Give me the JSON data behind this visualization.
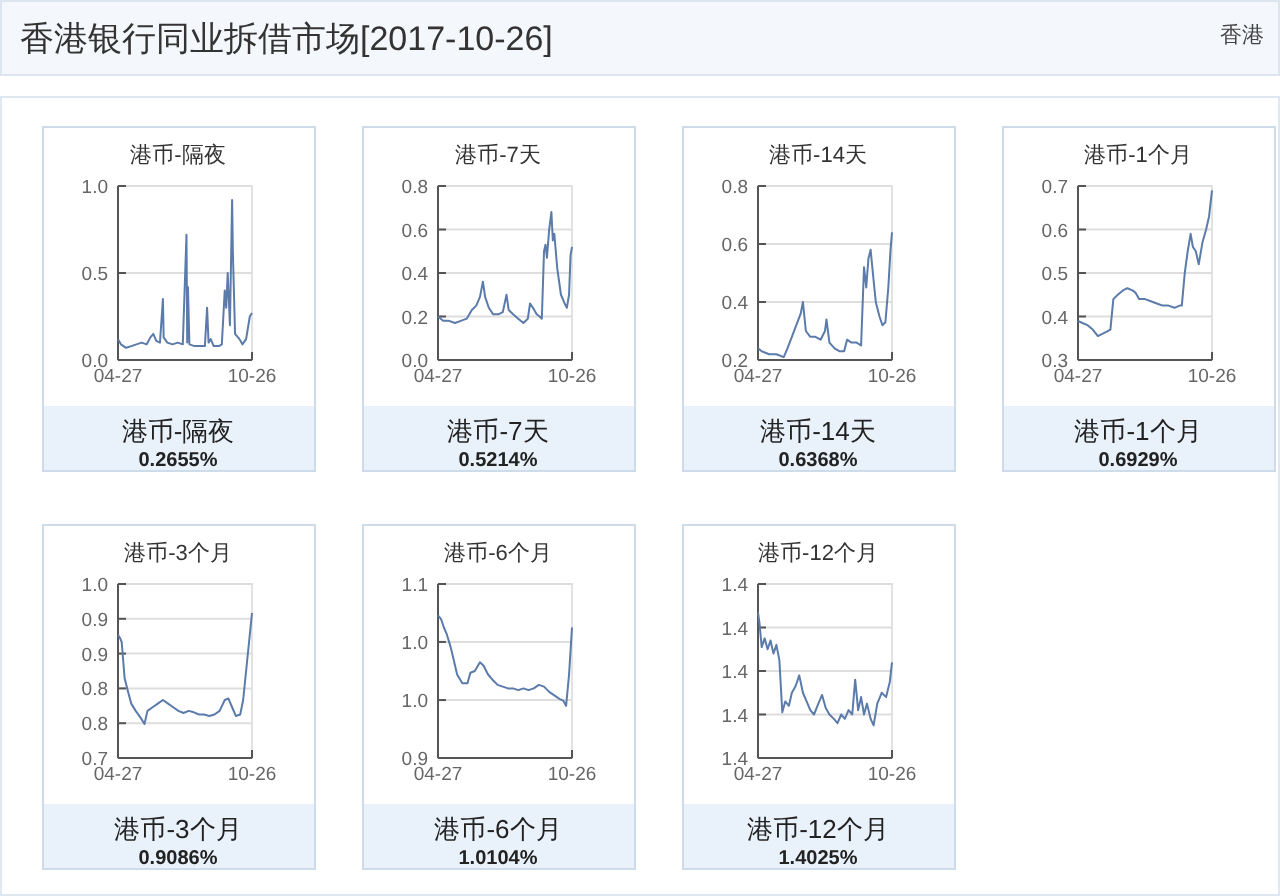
{
  "chart_data": [
    {
      "type": "other",
      "title": "香港银行同业拆借市场[2017-10-26]",
      "annotations": [
        "香港"
      ]
    },
    {
      "type": "line",
      "title": "港币-隔夜",
      "color": "#5b7bab",
      "grid": "y",
      "xlim": [
        "--04-27",
        "--10-26"
      ],
      "xticks": [
        {
          "value": "--04-27",
          "label": "04-27"
        },
        {
          "value": "--10-26",
          "label": "10-26"
        }
      ],
      "ylim": [
        0,
        1
      ],
      "yticks": [
        {
          "value": 0,
          "label": "0.0"
        },
        {
          "value": 0.5,
          "label": "0.5"
        },
        {
          "value": 1,
          "label": "1.0"
        }
      ],
      "annotations": [
        "港币-隔夜",
        "0.2655%"
      ],
      "x": [
        "--04-27",
        "--05-01",
        "--05-08",
        "--05-15",
        "--05-22",
        "--05-29",
        "--06-05",
        "--06-10",
        "--06-14",
        "--06-18",
        "--06-23",
        "--06-27",
        "--06-28",
        "--07-03",
        "--07-10",
        "--07-17",
        "--07-24",
        "--07-29",
        "--07-30",
        "--07-31",
        "--08-02",
        "--08-09",
        "--08-16",
        "--08-23",
        "--08-26",
        "--08-28",
        "--08-31",
        "--09-04",
        "--09-11",
        "--09-15",
        "--09-19",
        "--09-21",
        "--09-23",
        "--09-26",
        "--09-29",
        "--09-30",
        "--10-03",
        "--10-09",
        "--10-13",
        "--10-18",
        "--10-23",
        "--10-26"
      ],
      "values": [
        0.12,
        0.09,
        0.07,
        0.08,
        0.09,
        0.1,
        0.09,
        0.13,
        0.15,
        0.11,
        0.1,
        0.35,
        0.13,
        0.1,
        0.09,
        0.1,
        0.09,
        0.72,
        0.1,
        0.42,
        0.09,
        0.08,
        0.08,
        0.08,
        0.3,
        0.1,
        0.12,
        0.08,
        0.08,
        0.09,
        0.4,
        0.3,
        0.5,
        0.2,
        0.92,
        0.62,
        0.15,
        0.12,
        0.09,
        0.12,
        0.25,
        0.27
      ]
    },
    {
      "type": "line",
      "title": "港币-7天",
      "color": "#5b7bab",
      "grid": "y",
      "xlim": [
        "--04-27",
        "--10-26"
      ],
      "xticks": [
        {
          "value": "--04-27",
          "label": "04-27"
        },
        {
          "value": "--10-26",
          "label": "10-26"
        }
      ],
      "ylim": [
        0,
        0.8
      ],
      "yticks": [
        {
          "value": 0,
          "label": "0.0"
        },
        0.2,
        0.4,
        0.6,
        0.8
      ],
      "annotations": [
        "港币-7天",
        "0.5214%"
      ],
      "x": [
        "--04-27",
        "--05-04",
        "--05-12",
        "--05-20",
        "--05-28",
        "--06-05",
        "--06-12",
        "--06-18",
        "--06-23",
        "--06-27",
        "--06-30",
        "--07-05",
        "--07-11",
        "--07-18",
        "--07-24",
        "--07-29",
        "--08-01",
        "--08-07",
        "--08-14",
        "--08-21",
        "--08-27",
        "--08-30",
        "--09-03",
        "--09-08",
        "--09-12",
        "--09-15",
        "--09-18",
        "--09-20",
        "--09-22",
        "--09-25",
        "--09-28",
        "--09-30",
        "--10-02",
        "--10-06",
        "--10-11",
        "--10-16",
        "--10-19",
        "--10-22",
        "--10-24",
        "--10-26"
      ],
      "values": [
        0.2,
        0.18,
        0.18,
        0.17,
        0.18,
        0.19,
        0.23,
        0.25,
        0.29,
        0.36,
        0.29,
        0.24,
        0.21,
        0.21,
        0.22,
        0.3,
        0.23,
        0.21,
        0.19,
        0.17,
        0.19,
        0.26,
        0.24,
        0.21,
        0.2,
        0.19,
        0.5,
        0.53,
        0.47,
        0.6,
        0.68,
        0.55,
        0.58,
        0.42,
        0.3,
        0.26,
        0.24,
        0.3,
        0.48,
        0.52
      ]
    },
    {
      "type": "line",
      "title": "港币-14天",
      "color": "#5b7bab",
      "grid": "y",
      "xlim": [
        "--04-27",
        "--10-26"
      ],
      "xticks": [
        {
          "value": "--04-27",
          "label": "04-27"
        },
        {
          "value": "--10-26",
          "label": "10-26"
        }
      ],
      "ylim": [
        0.2,
        0.8
      ],
      "yticks": [
        0.2,
        0.4,
        0.6,
        0.8
      ],
      "annotations": [
        "港币-14天",
        "0.6368%"
      ],
      "x": [
        "--04-27",
        "--05-02",
        "--05-12",
        "--05-22",
        "--06-01",
        "--06-06",
        "--06-12",
        "--06-18",
        "--06-24",
        "--06-27",
        "--07-01",
        "--07-07",
        "--07-14",
        "--07-21",
        "--07-27",
        "--07-29",
        "--08-02",
        "--08-09",
        "--08-16",
        "--08-22",
        "--08-26",
        "--09-01",
        "--09-08",
        "--09-14",
        "--09-18",
        "--09-21",
        "--09-24",
        "--09-27",
        "--09-30",
        "--10-04",
        "--10-09",
        "--10-13",
        "--10-17",
        "--10-21",
        "--10-24",
        "--10-26"
      ],
      "values": [
        0.24,
        0.23,
        0.22,
        0.22,
        0.21,
        0.24,
        0.28,
        0.32,
        0.36,
        0.4,
        0.3,
        0.28,
        0.28,
        0.27,
        0.3,
        0.34,
        0.26,
        0.24,
        0.23,
        0.23,
        0.27,
        0.26,
        0.26,
        0.25,
        0.52,
        0.45,
        0.55,
        0.58,
        0.5,
        0.4,
        0.35,
        0.32,
        0.33,
        0.45,
        0.58,
        0.64
      ]
    },
    {
      "type": "line",
      "title": "港币-1个月",
      "color": "#5b7bab",
      "grid": "y",
      "xlim": [
        "--04-27",
        "--10-26"
      ],
      "xticks": [
        {
          "value": "--04-27",
          "label": "04-27"
        },
        {
          "value": "--10-26",
          "label": "10-26"
        }
      ],
      "ylim": [
        0.3,
        0.7
      ],
      "yticks": [
        0.3,
        0.4,
        0.5,
        0.6,
        0.7
      ],
      "annotations": [
        "港币-1个月",
        "0.6929%"
      ],
      "x": [
        "--04-27",
        "--05-03",
        "--05-10",
        "--05-17",
        "--05-24",
        "--05-30",
        "--06-05",
        "--06-10",
        "--06-14",
        "--06-20",
        "--06-27",
        "--07-03",
        "--07-10",
        "--07-14",
        "--07-19",
        "--07-27",
        "--08-04",
        "--08-12",
        "--08-20",
        "--08-28",
        "--09-05",
        "--09-12",
        "--09-15",
        "--09-19",
        "--09-23",
        "--09-27",
        "--09-30",
        "--10-04",
        "--10-08",
        "--10-13",
        "--10-18",
        "--10-22",
        "--10-26"
      ],
      "values": [
        0.39,
        0.385,
        0.38,
        0.37,
        0.355,
        0.36,
        0.365,
        0.37,
        0.44,
        0.45,
        0.46,
        0.465,
        0.46,
        0.455,
        0.44,
        0.44,
        0.435,
        0.43,
        0.425,
        0.425,
        0.42,
        0.425,
        0.425,
        0.5,
        0.55,
        0.59,
        0.56,
        0.55,
        0.52,
        0.57,
        0.6,
        0.63,
        0.69
      ]
    },
    {
      "type": "line",
      "title": "港币-3个月",
      "color": "#5b7bab",
      "grid": "y",
      "xlim": [
        "--04-27",
        "--10-26"
      ],
      "xticks": [
        {
          "value": "--04-27",
          "label": "04-27"
        },
        {
          "value": "--10-26",
          "label": "10-26"
        }
      ],
      "ylim": [
        0.72,
        0.96
      ],
      "yticks": [
        {
          "value": 0.72,
          "label": "0.7"
        },
        {
          "value": 0.768,
          "label": "0.8"
        },
        {
          "value": 0.816,
          "label": "0.8"
        },
        {
          "value": 0.864,
          "label": "0.9"
        },
        {
          "value": 0.912,
          "label": "0.9"
        },
        {
          "value": 0.96,
          "label": "1.0"
        }
      ],
      "annotations": [
        "港币-3个月",
        "0.9086%"
      ],
      "x": [
        "--04-27",
        "--04-30",
        "--05-02",
        "--05-06",
        "--05-11",
        "--05-15",
        "--05-21",
        "--05-28",
        "--06-02",
        "--06-06",
        "--06-13",
        "--06-20",
        "--06-27",
        "--07-04",
        "--07-11",
        "--07-18",
        "--07-25",
        "--08-01",
        "--08-08",
        "--08-15",
        "--08-22",
        "--08-29",
        "--09-05",
        "--09-12",
        "--09-19",
        "--09-24",
        "--09-29",
        "--10-04",
        "--10-10",
        "--10-14",
        "--10-18",
        "--10-22",
        "--10-26"
      ],
      "values": [
        0.89,
        0.885,
        0.88,
        0.83,
        0.81,
        0.795,
        0.785,
        0.775,
        0.767,
        0.785,
        0.79,
        0.795,
        0.8,
        0.795,
        0.79,
        0.785,
        0.782,
        0.785,
        0.783,
        0.78,
        0.78,
        0.778,
        0.78,
        0.785,
        0.8,
        0.802,
        0.79,
        0.778,
        0.78,
        0.8,
        0.84,
        0.88,
        0.92
      ]
    },
    {
      "type": "line",
      "title": "港币-6个月",
      "color": "#5b7bab",
      "grid": "y",
      "xlim": [
        "--04-27",
        "--10-26"
      ],
      "xticks": [
        {
          "value": "--04-27",
          "label": "04-27"
        },
        {
          "value": "--10-26",
          "label": "10-26"
        }
      ],
      "ylim": [
        0.95,
        1.05
      ],
      "yticks": [
        {
          "value": 0.95,
          "label": "0.9"
        },
        {
          "value": 0.9833,
          "label": "1.0"
        },
        {
          "value": 1.0167,
          "label": "1.0"
        },
        {
          "value": 1.05,
          "label": "1.1"
        }
      ],
      "annotations": [
        "港币-6个月",
        "1.0104%"
      ],
      "x": [
        "--04-27",
        "--05-01",
        "--05-05",
        "--05-09",
        "--05-14",
        "--05-18",
        "--05-23",
        "--05-30",
        "--06-06",
        "--06-10",
        "--06-16",
        "--06-23",
        "--06-28",
        "--07-04",
        "--07-10",
        "--07-17",
        "--07-24",
        "--07-31",
        "--08-07",
        "--08-14",
        "--08-21",
        "--08-28",
        "--09-04",
        "--09-11",
        "--09-18",
        "--09-25",
        "--10-02",
        "--10-09",
        "--10-14",
        "--10-18",
        "--10-22",
        "--10-26"
      ],
      "values": [
        1.032,
        1.03,
        1.025,
        1.021,
        1.014,
        1.007,
        0.998,
        0.993,
        0.993,
        0.999,
        1.0,
        1.005,
        1.003,
        0.998,
        0.995,
        0.992,
        0.991,
        0.99,
        0.99,
        0.989,
        0.99,
        0.989,
        0.99,
        0.992,
        0.991,
        0.988,
        0.986,
        0.984,
        0.983,
        0.98,
        0.998,
        1.025
      ]
    },
    {
      "type": "line",
      "title": "港币-12个月",
      "color": "#5b7bab",
      "grid": "y",
      "xlim": [
        "--04-27",
        "--10-26"
      ],
      "xticks": [
        {
          "value": "--04-27",
          "label": "04-27"
        },
        {
          "value": "--10-26",
          "label": "10-26"
        }
      ],
      "ylim": [
        1.36,
        1.44
      ],
      "yticks": [
        {
          "value": 1.36,
          "label": "1.4"
        },
        {
          "value": 1.38,
          "label": "1.4"
        },
        {
          "value": 1.4,
          "label": "1.4"
        },
        {
          "value": 1.42,
          "label": "1.4"
        },
        {
          "value": 1.44,
          "label": "1.4"
        }
      ],
      "annotations": [
        "港币-12个月",
        "1.4025%"
      ],
      "x": [
        "--04-27",
        "--04-29",
        "--05-02",
        "--05-06",
        "--05-10",
        "--05-14",
        "--05-18",
        "--05-22",
        "--05-26",
        "--05-30",
        "--06-03",
        "--06-08",
        "--06-12",
        "--06-17",
        "--06-22",
        "--06-27",
        "--07-02",
        "--07-07",
        "--07-12",
        "--07-18",
        "--07-23",
        "--07-28",
        "--08-02",
        "--08-08",
        "--08-13",
        "--08-18",
        "--08-23",
        "--08-28",
        "--09-02",
        "--09-06",
        "--09-10",
        "--09-14",
        "--09-18",
        "--09-22",
        "--09-27",
        "--10-01",
        "--10-06",
        "--10-12",
        "--10-18",
        "--10-23",
        "--10-26"
      ],
      "values": [
        1.427,
        1.422,
        1.411,
        1.415,
        1.41,
        1.414,
        1.408,
        1.412,
        1.405,
        1.381,
        1.386,
        1.384,
        1.39,
        1.393,
        1.398,
        1.39,
        1.386,
        1.382,
        1.38,
        1.385,
        1.389,
        1.383,
        1.38,
        1.378,
        1.376,
        1.38,
        1.378,
        1.382,
        1.38,
        1.396,
        1.382,
        1.388,
        1.38,
        1.385,
        1.378,
        1.375,
        1.385,
        1.39,
        1.388,
        1.395,
        1.404
      ]
    }
  ]
}
